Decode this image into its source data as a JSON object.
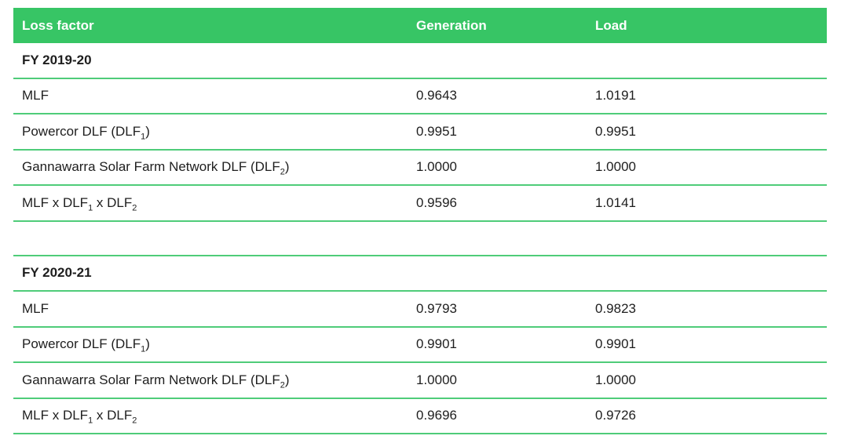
{
  "table": {
    "columns": [
      "Loss factor",
      "Generation",
      "Load"
    ],
    "sections": [
      {
        "title": "FY 2019-20",
        "rows": [
          {
            "label": {
              "t1": "MLF"
            },
            "generation": "0.9643",
            "load": "1.0191"
          },
          {
            "label": {
              "t1": "Powercor DLF (DLF",
              "s1": "1",
              "t2": ")"
            },
            "generation": "0.9951",
            "load": "0.9951"
          },
          {
            "label": {
              "t1": "Gannawarra Solar Farm Network DLF (DLF",
              "s1": "2",
              "t2": ")"
            },
            "generation": "1.0000",
            "load": "1.0000"
          },
          {
            "label": {
              "t1": "MLF x DLF",
              "s1": "1",
              "t2": " x DLF",
              "s2": "2"
            },
            "generation": "0.9596",
            "load": "1.0141"
          }
        ]
      },
      {
        "title": "FY 2020-21",
        "rows": [
          {
            "label": {
              "t1": "MLF"
            },
            "generation": "0.9793",
            "load": "0.9823"
          },
          {
            "label": {
              "t1": "Powercor DLF (DLF",
              "s1": "1",
              "t2": ")"
            },
            "generation": "0.9901",
            "load": "0.9901"
          },
          {
            "label": {
              "t1": "Gannawarra Solar Farm Network DLF (DLF",
              "s1": "2",
              "t2": ")"
            },
            "generation": "1.0000",
            "load": "1.0000"
          },
          {
            "label": {
              "t1": "MLF x DLF",
              "s1": "1",
              "t2": " x DLF",
              "s2": "2"
            },
            "generation": "0.9696",
            "load": "0.9726"
          }
        ]
      }
    ]
  },
  "colors": {
    "header_bg": "#37c565",
    "row_line": "#4fcc79",
    "header_text": "#ffffff",
    "body_text": "#1e1e1e"
  }
}
